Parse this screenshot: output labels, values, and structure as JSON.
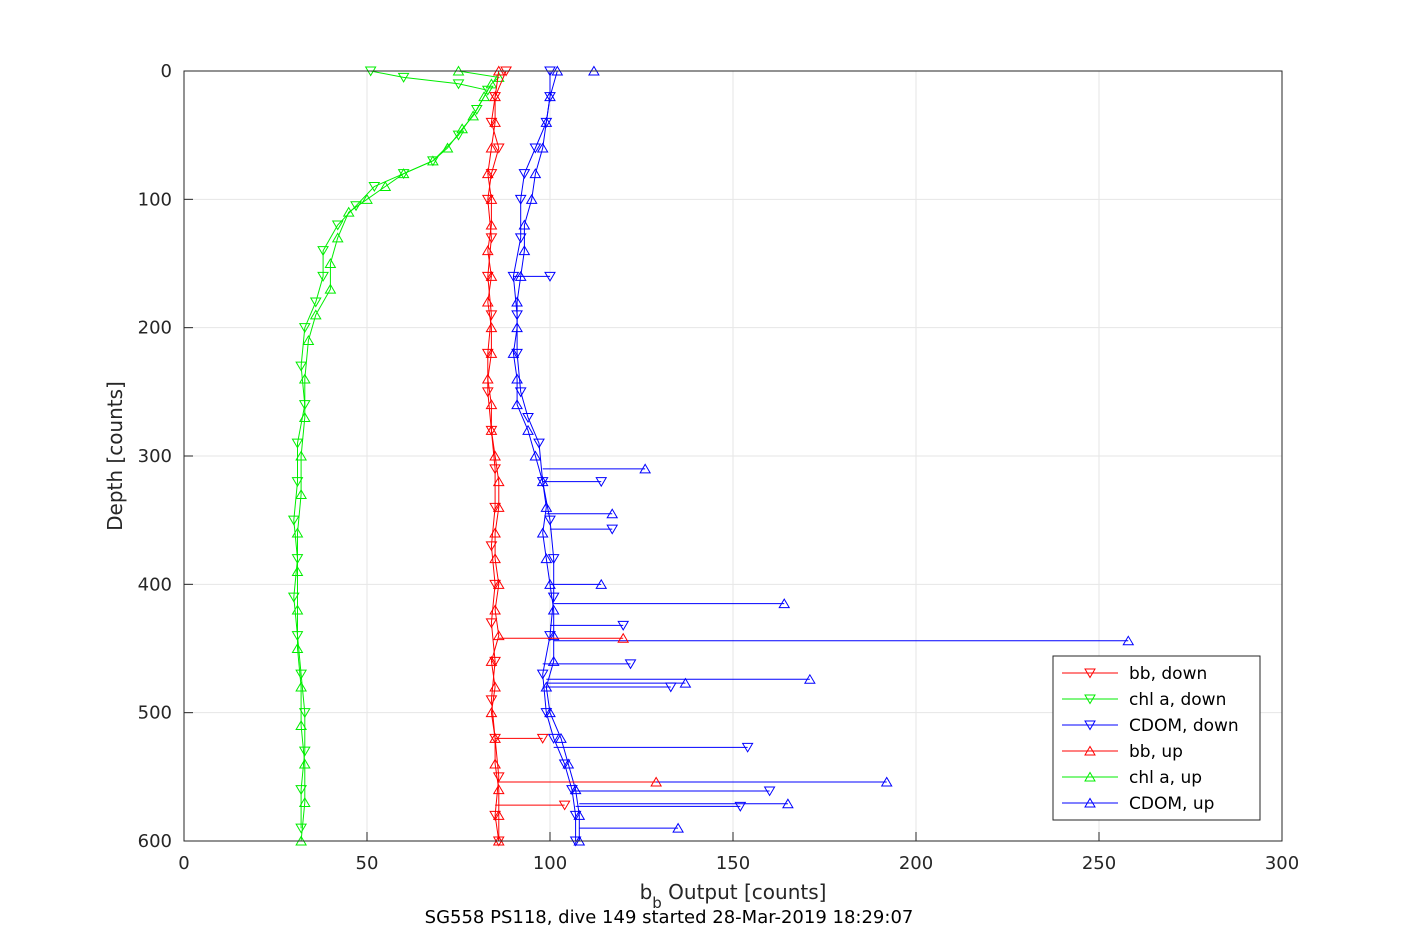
{
  "chart_data": {
    "type": "line",
    "title": "",
    "xlabel": {
      "main": "b",
      "sub": "b",
      "rest": " Output [counts]"
    },
    "ylabel": "Depth [counts]",
    "caption": "SG558 PS118, dive 149 started 28-Mar-2019 18:29:07",
    "xlim": [
      0,
      300
    ],
    "ylim": [
      0,
      600
    ],
    "y_reversed": true,
    "grid": true,
    "legend_position": "bottom-right",
    "x_ticks": [
      "0",
      "50",
      "100",
      "150",
      "200",
      "250",
      "300"
    ],
    "y_ticks": [
      "0",
      "100",
      "200",
      "300",
      "400",
      "500",
      "600"
    ],
    "series": [
      {
        "name": "bb, down",
        "color": "#ff0000",
        "marker": "triangle-down",
        "points": [
          [
            88,
            0
          ],
          [
            85,
            20
          ],
          [
            84,
            40
          ],
          [
            86,
            60
          ],
          [
            84,
            80
          ],
          [
            83,
            100
          ],
          [
            84,
            130
          ],
          [
            83,
            160
          ],
          [
            84,
            190
          ],
          [
            83,
            220
          ],
          [
            83,
            250
          ],
          [
            84,
            280
          ],
          [
            85,
            310
          ],
          [
            85,
            340
          ],
          [
            84,
            370
          ],
          [
            85,
            400
          ],
          [
            84,
            430
          ],
          [
            85,
            460
          ],
          [
            84,
            490
          ],
          [
            85,
            520
          ],
          [
            86,
            550
          ],
          [
            85,
            580
          ],
          [
            86,
            600
          ]
        ]
      },
      {
        "name": "chl a, down",
        "color": "#00ee00",
        "marker": "triangle-down",
        "points": [
          [
            51,
            0
          ],
          [
            60,
            5
          ],
          [
            75,
            10
          ],
          [
            83,
            15
          ],
          [
            80,
            30
          ],
          [
            75,
            50
          ],
          [
            68,
            70
          ],
          [
            60,
            80
          ],
          [
            52,
            90
          ],
          [
            47,
            105
          ],
          [
            42,
            120
          ],
          [
            38,
            140
          ],
          [
            38,
            160
          ],
          [
            36,
            180
          ],
          [
            33,
            200
          ],
          [
            32,
            230
          ],
          [
            33,
            260
          ],
          [
            31,
            290
          ],
          [
            31,
            320
          ],
          [
            30,
            350
          ],
          [
            31,
            380
          ],
          [
            30,
            410
          ],
          [
            31,
            440
          ],
          [
            32,
            470
          ],
          [
            33,
            500
          ],
          [
            33,
            530
          ],
          [
            32,
            560
          ],
          [
            32,
            590
          ]
        ]
      },
      {
        "name": "CDOM, down",
        "color": "#0000ff",
        "marker": "triangle-down",
        "points": [
          [
            100,
            0
          ],
          [
            100,
            20
          ],
          [
            99,
            40
          ],
          [
            96,
            60
          ],
          [
            93,
            80
          ],
          [
            92,
            100
          ],
          [
            92,
            130
          ],
          [
            90,
            160
          ],
          [
            91,
            190
          ],
          [
            91,
            220
          ],
          [
            92,
            250
          ],
          [
            94,
            270
          ],
          [
            97,
            290
          ],
          [
            98,
            320
          ],
          [
            100,
            350
          ],
          [
            101,
            380
          ],
          [
            101,
            410
          ],
          [
            100,
            440
          ],
          [
            98,
            470
          ],
          [
            99,
            500
          ],
          [
            101,
            520
          ],
          [
            104,
            540
          ],
          [
            106,
            560
          ],
          [
            107,
            580
          ],
          [
            107,
            600
          ]
        ]
      },
      {
        "name": "bb, up",
        "color": "#ff0000",
        "marker": "triangle-up",
        "points": [
          [
            86,
            600
          ],
          [
            86,
            580
          ],
          [
            86,
            560
          ],
          [
            85,
            540
          ],
          [
            85,
            520
          ],
          [
            84,
            500
          ],
          [
            85,
            480
          ],
          [
            84,
            460
          ],
          [
            86,
            440
          ],
          [
            85,
            420
          ],
          [
            86,
            400
          ],
          [
            85,
            380
          ],
          [
            85,
            360
          ],
          [
            86,
            340
          ],
          [
            86,
            320
          ],
          [
            85,
            300
          ],
          [
            84,
            280
          ],
          [
            84,
            260
          ],
          [
            83,
            240
          ],
          [
            84,
            220
          ],
          [
            84,
            200
          ],
          [
            83,
            180
          ],
          [
            84,
            160
          ],
          [
            83,
            140
          ],
          [
            84,
            120
          ],
          [
            84,
            100
          ],
          [
            83,
            80
          ],
          [
            84,
            60
          ],
          [
            85,
            40
          ],
          [
            85,
            20
          ],
          [
            86,
            0
          ]
        ]
      },
      {
        "name": "chl a, up",
        "color": "#00ee00",
        "marker": "triangle-up",
        "points": [
          [
            32,
            600
          ],
          [
            33,
            570
          ],
          [
            33,
            540
          ],
          [
            32,
            510
          ],
          [
            32,
            480
          ],
          [
            31,
            450
          ],
          [
            31,
            420
          ],
          [
            31,
            390
          ],
          [
            31,
            360
          ],
          [
            32,
            330
          ],
          [
            32,
            300
          ],
          [
            33,
            270
          ],
          [
            33,
            240
          ],
          [
            34,
            210
          ],
          [
            36,
            190
          ],
          [
            40,
            170
          ],
          [
            40,
            150
          ],
          [
            42,
            130
          ],
          [
            45,
            110
          ],
          [
            50,
            100
          ],
          [
            55,
            90
          ],
          [
            60,
            80
          ],
          [
            68,
            70
          ],
          [
            72,
            60
          ],
          [
            76,
            45
          ],
          [
            79,
            35
          ],
          [
            82,
            20
          ],
          [
            84,
            10
          ],
          [
            86,
            5
          ],
          [
            75,
            0
          ]
        ]
      },
      {
        "name": "CDOM, up",
        "color": "#0000ff",
        "marker": "triangle-up",
        "points": [
          [
            108,
            600
          ],
          [
            108,
            580
          ],
          [
            107,
            560
          ],
          [
            105,
            540
          ],
          [
            103,
            520
          ],
          [
            100,
            500
          ],
          [
            99,
            480
          ],
          [
            101,
            460
          ],
          [
            101,
            440
          ],
          [
            101,
            420
          ],
          [
            100,
            400
          ],
          [
            99,
            380
          ],
          [
            98,
            360
          ],
          [
            99,
            340
          ],
          [
            98,
            320
          ],
          [
            96,
            300
          ],
          [
            94,
            280
          ],
          [
            91,
            260
          ],
          [
            91,
            240
          ],
          [
            90,
            220
          ],
          [
            91,
            200
          ],
          [
            91,
            180
          ],
          [
            92,
            160
          ],
          [
            93,
            140
          ],
          [
            93,
            120
          ],
          [
            95,
            100
          ],
          [
            96,
            80
          ],
          [
            98,
            60
          ],
          [
            99,
            40
          ],
          [
            100,
            20
          ],
          [
            102,
            0
          ]
        ]
      }
    ],
    "spikes": [
      {
        "series": "CDOM, up",
        "color": "#0000ff",
        "marker": "triangle-up",
        "points": [
          [
            112,
            0
          ],
          [
            126,
            310
          ],
          [
            117,
            345
          ],
          [
            114,
            400
          ],
          [
            164,
            415
          ],
          [
            258,
            444
          ],
          [
            171,
            474
          ],
          [
            137,
            477
          ],
          [
            192,
            554
          ],
          [
            165,
            571
          ],
          [
            135,
            590
          ]
        ]
      },
      {
        "series": "CDOM, down",
        "color": "#0000ff",
        "marker": "triangle-down",
        "points": [
          [
            100,
            160
          ],
          [
            114,
            320
          ],
          [
            117,
            357
          ],
          [
            120,
            432
          ],
          [
            122,
            462
          ],
          [
            133,
            480
          ],
          [
            154,
            527
          ],
          [
            160,
            561
          ],
          [
            152,
            573
          ]
        ]
      },
      {
        "series": "bb, up",
        "color": "#ff0000",
        "marker": "triangle-up",
        "points": [
          [
            129,
            554
          ],
          [
            120,
            442
          ]
        ]
      },
      {
        "series": "bb, down",
        "color": "#ff0000",
        "marker": "triangle-down",
        "points": [
          [
            104,
            572
          ],
          [
            98,
            520
          ]
        ]
      }
    ]
  }
}
